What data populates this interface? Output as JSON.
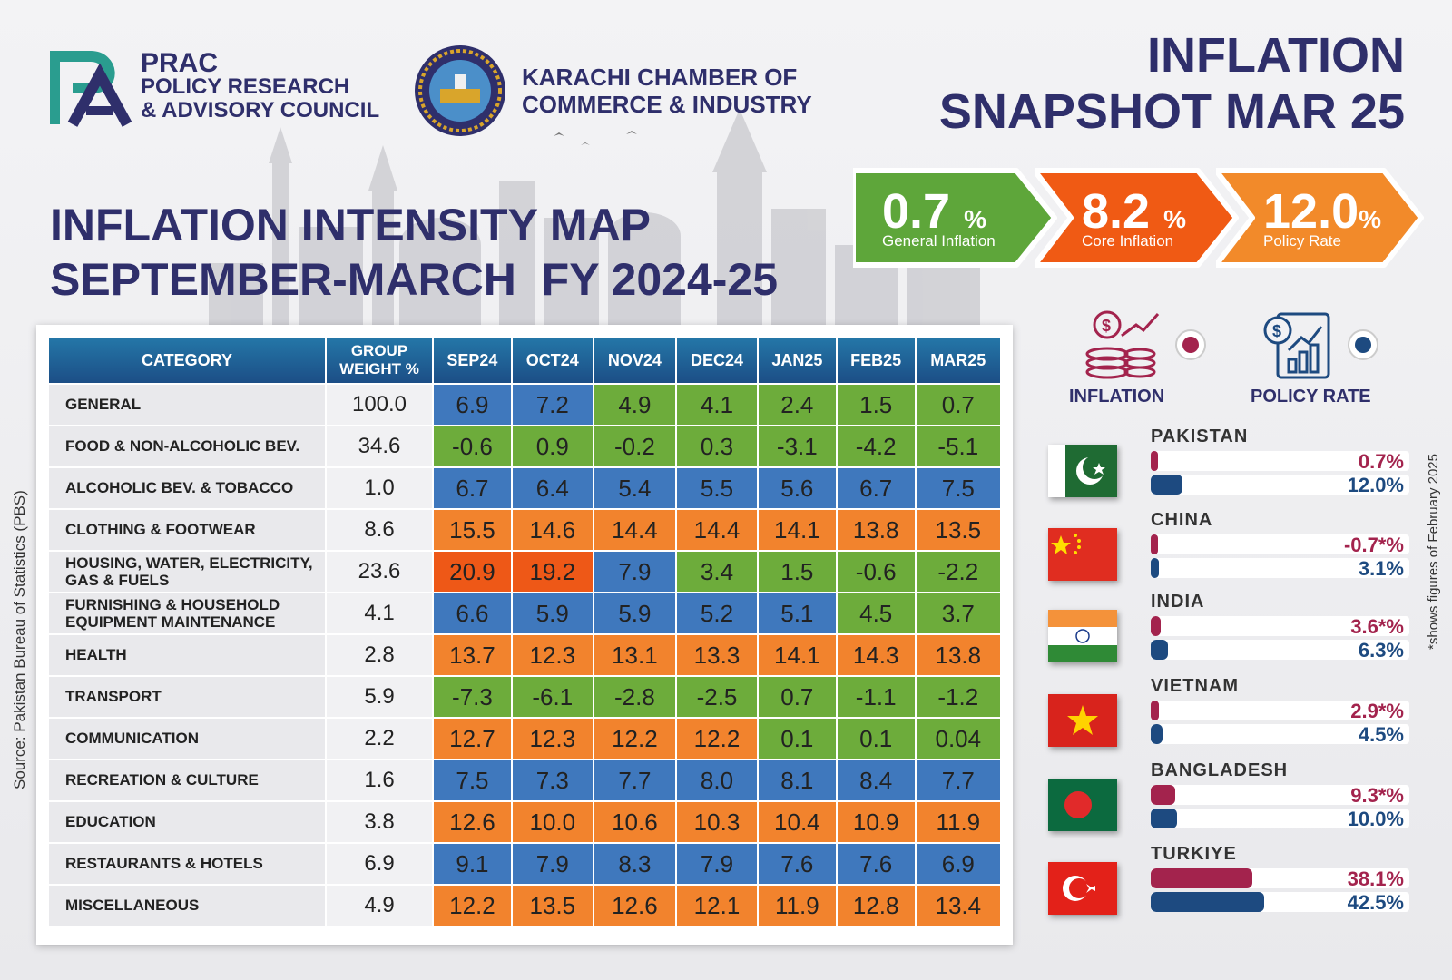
{
  "header": {
    "prac_acronym": "PRAC",
    "prac_line1": "POLICY RESEARCH",
    "prac_line2": "& ADVISORY COUNCIL",
    "kcci_line1": "KARACHI CHAMBER OF",
    "kcci_line2": "COMMERCE & INDUSTRY",
    "snapshot_line1": "INFLATION",
    "snapshot_line2": "SNAPSHOT MAR 25"
  },
  "title": {
    "line1": "INFLATION INTENSITY MAP",
    "line2": "SEPTEMBER-MARCH  FY 2024-25"
  },
  "kpis": [
    {
      "value": "0.7",
      "unit": "%",
      "label": "General Inflation",
      "color": "#5ea63a"
    },
    {
      "value": "8.2",
      "unit": "%",
      "label": "Core Inflation",
      "color": "#f05a14"
    },
    {
      "value": "12.0",
      "unit": "%",
      "label": "Policy Rate",
      "color": "#f28a2a"
    }
  ],
  "table": {
    "headers": [
      "CATEGORY",
      "GROUP WEIGHT %",
      "SEP24",
      "OCT24",
      "NOV24",
      "DEC24",
      "JAN25",
      "FEB25",
      "MAR25"
    ],
    "rows": [
      {
        "category": "GENERAL",
        "weight": "100.0",
        "values": [
          "6.9",
          "7.2",
          "4.9",
          "4.1",
          "2.4",
          "1.5",
          "0.7"
        ],
        "colors": [
          "blue",
          "blue",
          "green",
          "green",
          "green",
          "green",
          "green"
        ]
      },
      {
        "category": "FOOD & NON-ALCOHOLIC BEV.",
        "weight": "34.6",
        "values": [
          "-0.6",
          "0.9",
          "-0.2",
          "0.3",
          "-3.1",
          "-4.2",
          "-5.1"
        ],
        "colors": [
          "green",
          "green",
          "green",
          "green",
          "green",
          "green",
          "green"
        ]
      },
      {
        "category": "ALCOHOLIC BEV. & TOBACCO",
        "weight": "1.0",
        "values": [
          "6.7",
          "6.4",
          "5.4",
          "5.5",
          "5.6",
          "6.7",
          "7.5"
        ],
        "colors": [
          "blue",
          "blue",
          "blue",
          "blue",
          "blue",
          "blue",
          "blue"
        ]
      },
      {
        "category": "CLOTHING & FOOTWEAR",
        "weight": "8.6",
        "values": [
          "15.5",
          "14.6",
          "14.4",
          "14.4",
          "14.1",
          "13.8",
          "13.5"
        ],
        "colors": [
          "orange",
          "orange",
          "orange",
          "orange",
          "orange",
          "orange",
          "orange"
        ]
      },
      {
        "category": "HOUSING, WATER, ELECTRICITY, GAS & FUELS",
        "weight": "23.6",
        "values": [
          "20.9",
          "19.2",
          "7.9",
          "3.4",
          "1.5",
          "-0.6",
          "-2.2"
        ],
        "colors": [
          "red",
          "red",
          "blue",
          "green",
          "green",
          "green",
          "green"
        ]
      },
      {
        "category": "FURNISHING & HOUSEHOLD EQUIPMENT MAINTENANCE",
        "weight": "4.1",
        "values": [
          "6.6",
          "5.9",
          "5.9",
          "5.2",
          "5.1",
          "4.5",
          "3.7"
        ],
        "colors": [
          "blue",
          "blue",
          "blue",
          "blue",
          "blue",
          "green",
          "green"
        ]
      },
      {
        "category": "HEALTH",
        "weight": "2.8",
        "values": [
          "13.7",
          "12.3",
          "13.1",
          "13.3",
          "14.1",
          "14.3",
          "13.8"
        ],
        "colors": [
          "orange",
          "orange",
          "orange",
          "orange",
          "orange",
          "orange",
          "orange"
        ]
      },
      {
        "category": "TRANSPORT",
        "weight": "5.9",
        "values": [
          "-7.3",
          "-6.1",
          "-2.8",
          "-2.5",
          "0.7",
          "-1.1",
          "-1.2"
        ],
        "colors": [
          "green",
          "green",
          "green",
          "green",
          "green",
          "green",
          "green"
        ]
      },
      {
        "category": "COMMUNICATION",
        "weight": "2.2",
        "values": [
          "12.7",
          "12.3",
          "12.2",
          "12.2",
          "0.1",
          "0.1",
          "0.04"
        ],
        "colors": [
          "orange",
          "orange",
          "orange",
          "orange",
          "green",
          "green",
          "green"
        ]
      },
      {
        "category": "RECREATION & CULTURE",
        "weight": "1.6",
        "values": [
          "7.5",
          "7.3",
          "7.7",
          "8.0",
          "8.1",
          "8.4",
          "7.7"
        ],
        "colors": [
          "blue",
          "blue",
          "blue",
          "blue",
          "blue",
          "blue",
          "blue"
        ]
      },
      {
        "category": "EDUCATION",
        "weight": "3.8",
        "values": [
          "12.6",
          "10.0",
          "10.6",
          "10.3",
          "10.4",
          "10.9",
          "11.9"
        ],
        "colors": [
          "orange",
          "orange",
          "orange",
          "orange",
          "orange",
          "orange",
          "orange"
        ]
      },
      {
        "category": "RESTAURANTS & HOTELS",
        "weight": "6.9",
        "values": [
          "9.1",
          "7.9",
          "8.3",
          "7.9",
          "7.6",
          "7.6",
          "6.9"
        ],
        "colors": [
          "blue",
          "blue",
          "blue",
          "blue",
          "blue",
          "blue",
          "blue"
        ]
      },
      {
        "category": "MISCELLANEOUS",
        "weight": "4.9",
        "values": [
          "12.2",
          "13.5",
          "12.6",
          "12.1",
          "11.9",
          "12.8",
          "13.4"
        ],
        "colors": [
          "orange",
          "orange",
          "orange",
          "orange",
          "orange",
          "orange",
          "orange"
        ]
      }
    ]
  },
  "legend": {
    "inflation_label": "INFLATION",
    "policy_label": "POLICY RATE"
  },
  "comparison": {
    "countries": [
      {
        "name": "PAKISTAN",
        "inflation": 0.7,
        "inflation_text": "0.7%",
        "policy": 12.0,
        "policy_text": "12.0%",
        "flag": "pakistan-flag"
      },
      {
        "name": "CHINA",
        "inflation": -0.7,
        "inflation_text": "-0.7*%",
        "policy": 3.1,
        "policy_text": "3.1%",
        "flag": "china-flag"
      },
      {
        "name": "INDIA",
        "inflation": 3.6,
        "inflation_text": "3.6*%",
        "policy": 6.3,
        "policy_text": "6.3%",
        "flag": "india-flag"
      },
      {
        "name": "VIETNAM",
        "inflation": 2.9,
        "inflation_text": "2.9*%",
        "policy": 4.5,
        "policy_text": "4.5%",
        "flag": "vietnam-flag"
      },
      {
        "name": "BANGLADESH",
        "inflation": 9.3,
        "inflation_text": "9.3*%",
        "policy": 10.0,
        "policy_text": "10.0%",
        "flag": "bangladesh-flag"
      },
      {
        "name": "TURKIYE",
        "inflation": 38.1,
        "inflation_text": "38.1%",
        "policy": 42.5,
        "policy_text": "42.5%",
        "flag": "turkiye-flag"
      }
    ]
  },
  "source": "Source: Pakistan Bureau of Statistics (PBS)",
  "note": "*shows  figures of February 2025",
  "colors": {
    "blue": "#3f78bd",
    "green": "#6dac3b",
    "orange": "#f2832d",
    "red": "#ee5817",
    "navy": "#2f2f6b"
  }
}
